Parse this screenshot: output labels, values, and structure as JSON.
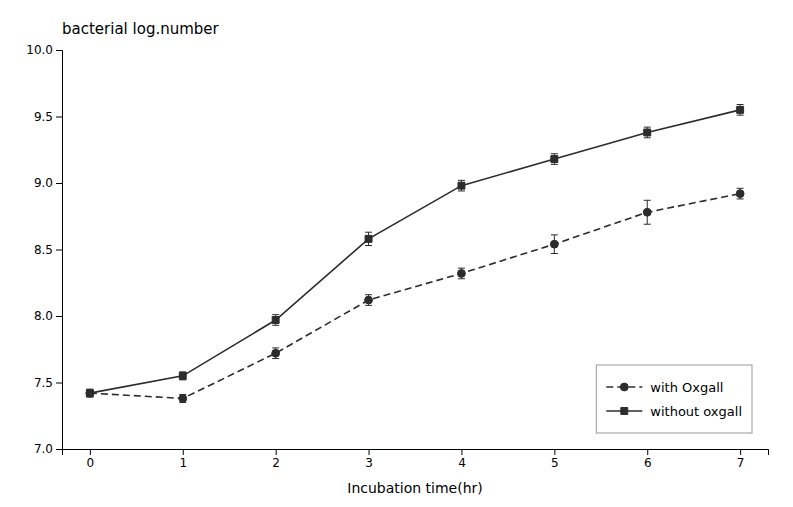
{
  "chart_data": {
    "type": "line",
    "xlabel": "Incubation time(hr)",
    "ylabel": "bacterial log.number",
    "x": [
      0,
      1,
      2,
      3,
      4,
      5,
      6,
      7
    ],
    "series": [
      {
        "name": "with Oxgall",
        "color": "#2c2c2c",
        "marker": "circle",
        "line_style": "dashed",
        "values": [
          7.42,
          7.38,
          7.72,
          8.12,
          8.32,
          8.54,
          8.78,
          8.92
        ],
        "errors": [
          0.03,
          0.03,
          0.04,
          0.04,
          0.04,
          0.07,
          0.09,
          0.04
        ]
      },
      {
        "name": "without oxgall",
        "color": "#2c2c2c",
        "marker": "square",
        "line_style": "solid",
        "values": [
          7.42,
          7.55,
          7.97,
          8.58,
          8.98,
          9.18,
          9.38,
          9.55
        ],
        "errors": [
          0.02,
          0.03,
          0.04,
          0.05,
          0.04,
          0.04,
          0.04,
          0.04
        ]
      }
    ],
    "xlim": [
      -0.3,
      7.3
    ],
    "ylim": [
      7.0,
      10.0
    ],
    "xticks": [
      0,
      1,
      2,
      3,
      4,
      5,
      6,
      7
    ],
    "yticks": [
      {
        "value": 7.0,
        "label": "7.0"
      },
      {
        "value": 7.5,
        "label": "7.5"
      },
      {
        "value": 8.0,
        "label": "8.0"
      },
      {
        "value": 8.5,
        "label": "8.5"
      },
      {
        "value": 9.0,
        "label": "9.0"
      },
      {
        "value": 9.5,
        "label": "9.5"
      },
      {
        "value": 10.0,
        "label": "10.0"
      }
    ],
    "legend": "lower right"
  }
}
